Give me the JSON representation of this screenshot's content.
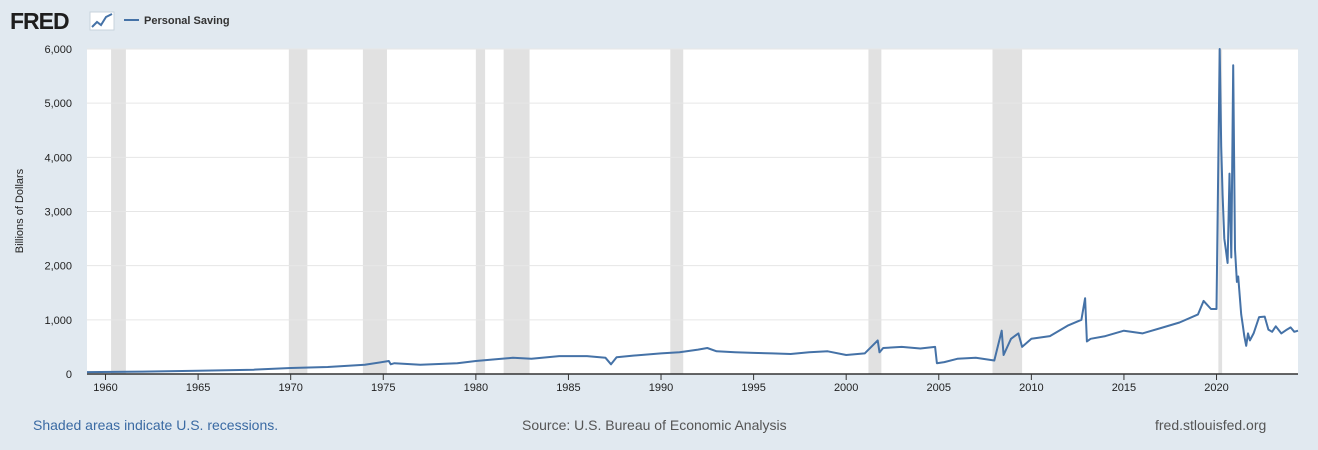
{
  "brand": {
    "logo_text": "FRED"
  },
  "chart_data": {
    "type": "line",
    "title": "",
    "ylabel": "Billions of Dollars",
    "xlabel": "",
    "x_range": [
      1959.0,
      2024.4
    ],
    "ylim": [
      0,
      6000
    ],
    "y_ticks": [
      0,
      1000,
      2000,
      3000,
      4000,
      5000,
      6000
    ],
    "y_tick_labels": [
      "0",
      "1,000",
      "2,000",
      "3,000",
      "4,000",
      "5,000",
      "6,000"
    ],
    "x_ticks": [
      1960,
      1965,
      1970,
      1975,
      1980,
      1985,
      1990,
      1995,
      2000,
      2005,
      2010,
      2015,
      2020
    ],
    "x_tick_labels": [
      "1960",
      "1965",
      "1970",
      "1975",
      "1980",
      "1985",
      "1990",
      "1995",
      "2000",
      "2005",
      "2010",
      "2015",
      "2020"
    ],
    "grid": true,
    "legend": "top-left",
    "line_color": "#4572a7",
    "recession_color": "#e1e1e1",
    "recessions": [
      [
        1960.3,
        1961.1
      ],
      [
        1969.9,
        1970.9
      ],
      [
        1973.9,
        1975.2
      ],
      [
        1980.0,
        1980.5
      ],
      [
        1981.5,
        1982.9
      ],
      [
        1990.5,
        1991.2
      ],
      [
        2001.2,
        2001.9
      ],
      [
        2007.9,
        2009.5
      ],
      [
        2020.1,
        2020.3
      ]
    ],
    "series": [
      {
        "name": "Personal Saving",
        "x": [
          1959.0,
          1962.0,
          1965.0,
          1968.0,
          1970.0,
          1972.0,
          1974.0,
          1975.3,
          1975.4,
          1975.6,
          1977.0,
          1979.0,
          1980.0,
          1981.0,
          1982.0,
          1983.0,
          1984.5,
          1986.0,
          1987.0,
          1987.3,
          1987.6,
          1988.5,
          1990.0,
          1991.0,
          1992.0,
          1992.5,
          1993.0,
          1994.0,
          1995.0,
          1996.0,
          1997.0,
          1998.0,
          1999.0,
          2000.0,
          2001.0,
          2001.7,
          2001.8,
          2002.0,
          2003.0,
          2004.0,
          2004.8,
          2004.9,
          2005.3,
          2006.0,
          2007.0,
          2008.0,
          2008.4,
          2008.5,
          2008.9,
          2009.3,
          2009.5,
          2010.0,
          2011.0,
          2012.0,
          2012.7,
          2012.9,
          2013.0,
          2013.2,
          2014.0,
          2015.0,
          2016.0,
          2017.0,
          2018.0,
          2019.0,
          2019.3,
          2019.7,
          2020.0,
          2020.17,
          2020.25,
          2020.33,
          2020.42,
          2020.5,
          2020.6,
          2020.7,
          2020.8,
          2020.9,
          2021.0,
          2021.1,
          2021.17,
          2021.25,
          2021.33,
          2021.42,
          2021.5,
          2021.6,
          2021.7,
          2021.8,
          2022.0,
          2022.3,
          2022.6,
          2022.8,
          2023.0,
          2023.2,
          2023.5,
          2023.8,
          2024.0,
          2024.2,
          2024.4
        ],
        "values": [
          35,
          45,
          60,
          80,
          110,
          130,
          170,
          240,
          180,
          200,
          170,
          200,
          240,
          270,
          300,
          280,
          330,
          330,
          300,
          180,
          310,
          340,
          380,
          400,
          450,
          480,
          420,
          400,
          390,
          380,
          370,
          400,
          420,
          350,
          380,
          620,
          400,
          480,
          500,
          470,
          500,
          200,
          220,
          280,
          300,
          250,
          800,
          350,
          650,
          750,
          500,
          650,
          700,
          900,
          1000,
          1400,
          600,
          650,
          700,
          800,
          750,
          850,
          950,
          1100,
          1350,
          1200,
          1200,
          6000,
          4200,
          3300,
          2500,
          2300,
          2050,
          3700,
          2150,
          5700,
          2300,
          1700,
          1800,
          1450,
          1100,
          900,
          700,
          520,
          750,
          620,
          750,
          1050,
          1060,
          820,
          780,
          880,
          750,
          820,
          860,
          780,
          800
        ]
      }
    ]
  },
  "footer": {
    "recession_note": "Shaded areas indicate U.S. recessions.",
    "source": "Source: U.S. Bureau of Economic Analysis",
    "site": "fred.stlouisfed.org"
  }
}
